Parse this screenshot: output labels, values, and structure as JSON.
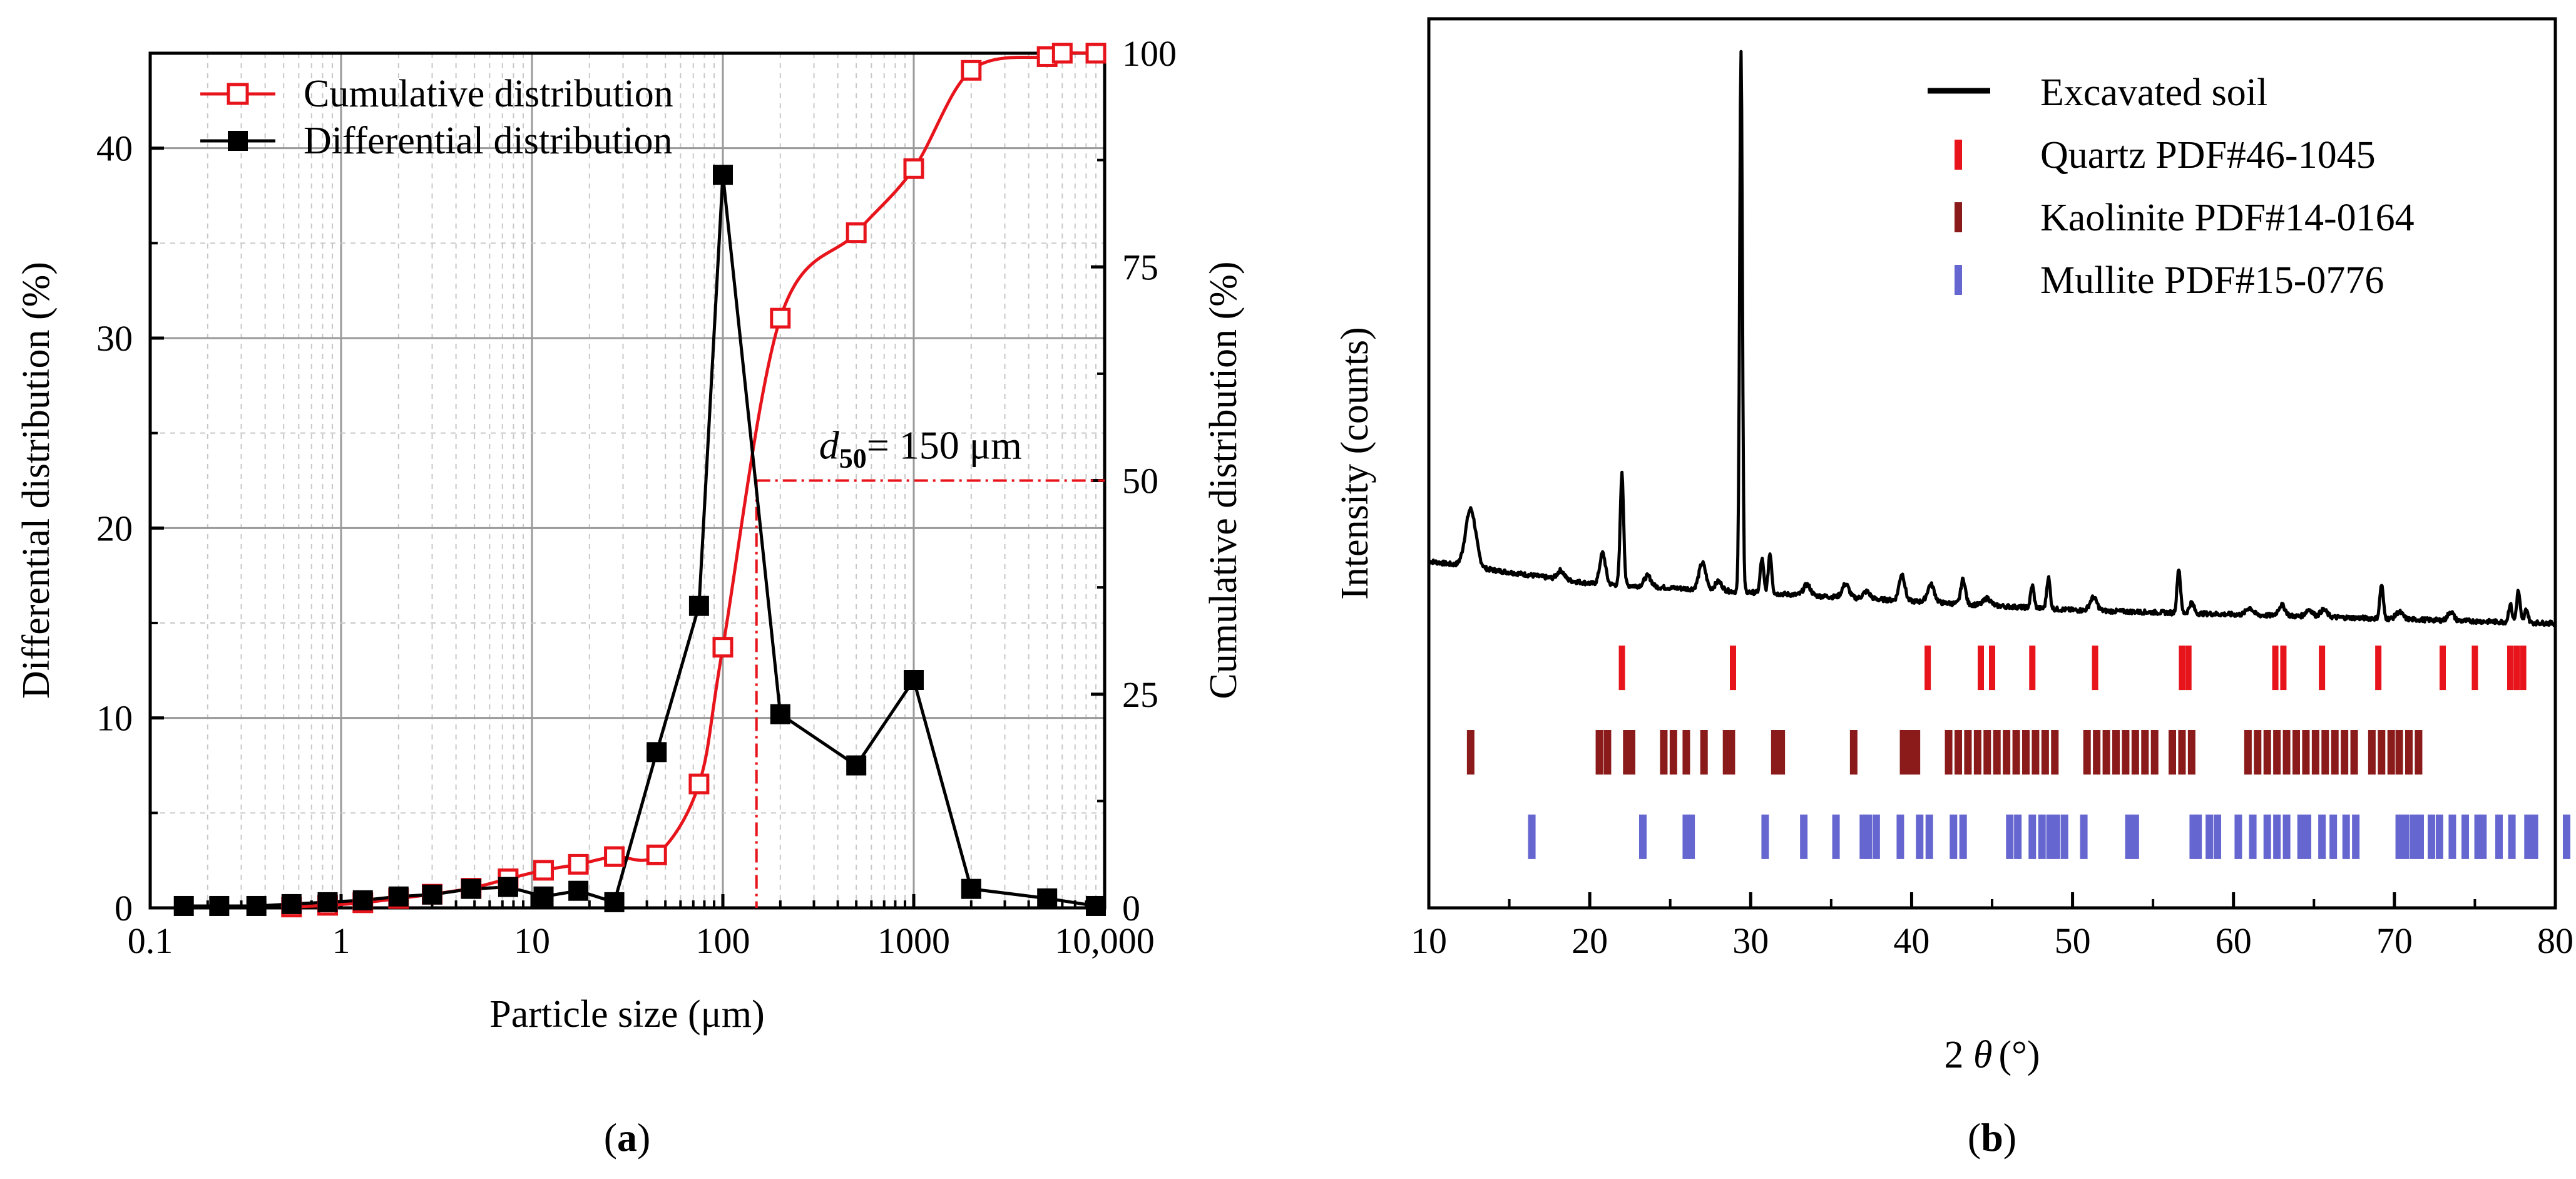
{
  "chart_data": [
    {
      "id": "a",
      "type": "line",
      "panel_label": "a",
      "xlabel": "Particle size (μm)",
      "ylabel_left": "Differential distribution (%)",
      "ylabel_right": "Cumulative distribution (%)",
      "xscale": "log",
      "xlim": [
        0.1,
        10000
      ],
      "ylim_left": [
        0,
        45
      ],
      "ylim_right": [
        0,
        100
      ],
      "grid": true,
      "legend_position": "top-left",
      "xticks": [
        {
          "v": 0.1,
          "label": "0.1"
        },
        {
          "v": 1,
          "label": "1"
        },
        {
          "v": 10,
          "label": "10"
        },
        {
          "v": 100,
          "label": "100"
        },
        {
          "v": 1000,
          "label": "1000"
        },
        {
          "v": 10000,
          "label": "10,000"
        }
      ],
      "yticks_left": [
        0,
        10,
        20,
        30,
        40
      ],
      "yticks_right": [
        0,
        25,
        50,
        75,
        100
      ],
      "series": [
        {
          "name": "Cumulative distribution",
          "axis": "right",
          "color": "#e8141c",
          "marker": "open-square",
          "x": [
            0.55,
            0.85,
            1.3,
            2.0,
            3.0,
            4.8,
            7.5,
            11.5,
            17.5,
            27,
            45,
            75,
            100,
            200,
            500,
            1000,
            2000,
            5000,
            6000,
            9000
          ],
          "y": [
            0.1,
            0.3,
            0.6,
            1.1,
            1.6,
            2.3,
            3.4,
            4.4,
            5.1,
            6.0,
            6.2,
            14.5,
            30.5,
            69.0,
            79.0,
            86.5,
            98.0,
            99.6,
            100.0,
            100.0
          ]
        },
        {
          "name": "Differential distribution",
          "axis": "left",
          "color": "#000000",
          "marker": "filled-square",
          "x": [
            0.15,
            0.23,
            0.36,
            0.55,
            0.85,
            1.3,
            2.0,
            3.0,
            4.8,
            7.5,
            11.5,
            17.5,
            27,
            45,
            75,
            100,
            200,
            500,
            1000,
            2000,
            5000,
            9000
          ],
          "y": [
            0.1,
            0.1,
            0.1,
            0.2,
            0.3,
            0.4,
            0.6,
            0.7,
            1.0,
            1.1,
            0.6,
            0.9,
            0.3,
            8.2,
            15.9,
            38.6,
            10.2,
            7.5,
            12.0,
            1.0,
            0.5,
            0.1
          ]
        }
      ],
      "annotation": {
        "d50_symbol": "d",
        "d50_subscript": "50",
        "d50_text": "= 150 μm",
        "x": 150,
        "y_right": 50,
        "color": "#e8141c"
      }
    },
    {
      "id": "b",
      "type": "line",
      "panel_label": "b",
      "xlabel_prefix": "2 ",
      "xlabel_theta": "θ",
      "xlabel_suffix": "(°)",
      "ylabel": "Intensity (counts)",
      "xlim": [
        10,
        80
      ],
      "xticks": [
        10,
        20,
        30,
        40,
        50,
        60,
        70,
        80
      ],
      "ylim": [
        0,
        100
      ],
      "legend_position": "top-right",
      "series": [
        {
          "name": "Excavated soil",
          "color": "#000000",
          "baseline": [
            [
              10,
              39
            ],
            [
              14,
              38
            ],
            [
              20,
              36.5
            ],
            [
              30,
              35.5
            ],
            [
              40,
              34.5
            ],
            [
              50,
              33.5
            ],
            [
              60,
              33
            ],
            [
              70,
              32.5
            ],
            [
              80,
              32
            ]
          ],
          "peaks": [
            {
              "x": 12.6,
              "h": 6.5,
              "w": 0.45
            },
            {
              "x": 18.2,
              "h": 1.0,
              "w": 0.3
            },
            {
              "x": 20.8,
              "h": 3.5,
              "w": 0.25
            },
            {
              "x": 22.0,
              "h": 12.5,
              "w": 0.15
            },
            {
              "x": 23.6,
              "h": 1.2,
              "w": 0.3
            },
            {
              "x": 27.0,
              "h": 3.0,
              "w": 0.3
            },
            {
              "x": 28.0,
              "h": 1.0,
              "w": 0.3
            },
            {
              "x": 29.4,
              "h": 61.0,
              "w": 0.12
            },
            {
              "x": 30.7,
              "h": 3.8,
              "w": 0.15
            },
            {
              "x": 31.2,
              "h": 4.5,
              "w": 0.15
            },
            {
              "x": 33.5,
              "h": 1.2,
              "w": 0.3
            },
            {
              "x": 35.9,
              "h": 1.5,
              "w": 0.3
            },
            {
              "x": 37.2,
              "h": 0.8,
              "w": 0.3
            },
            {
              "x": 39.4,
              "h": 3.0,
              "w": 0.25
            },
            {
              "x": 41.2,
              "h": 2.0,
              "w": 0.3
            },
            {
              "x": 43.2,
              "h": 2.8,
              "w": 0.2
            },
            {
              "x": 44.7,
              "h": 0.8,
              "w": 0.3
            },
            {
              "x": 47.5,
              "h": 2.5,
              "w": 0.15
            },
            {
              "x": 48.5,
              "h": 3.5,
              "w": 0.15
            },
            {
              "x": 51.3,
              "h": 1.5,
              "w": 0.3
            },
            {
              "x": 56.6,
              "h": 5.0,
              "w": 0.15
            },
            {
              "x": 57.4,
              "h": 1.2,
              "w": 0.2
            },
            {
              "x": 61.0,
              "h": 0.8,
              "w": 0.3
            },
            {
              "x": 63.0,
              "h": 1.2,
              "w": 0.3
            },
            {
              "x": 64.7,
              "h": 0.8,
              "w": 0.3
            },
            {
              "x": 65.6,
              "h": 0.8,
              "w": 0.3
            },
            {
              "x": 69.2,
              "h": 3.8,
              "w": 0.15
            },
            {
              "x": 70.3,
              "h": 0.8,
              "w": 0.3
            },
            {
              "x": 73.5,
              "h": 1.0,
              "w": 0.25
            },
            {
              "x": 77.2,
              "h": 2.0,
              "w": 0.15
            },
            {
              "x": 77.7,
              "h": 3.5,
              "w": 0.15
            },
            {
              "x": 78.2,
              "h": 1.5,
              "w": 0.15
            }
          ]
        },
        {
          "name": "Quartz PDF#46-1045",
          "color": "#e8141c",
          "lines": [
            22.0,
            28.9,
            41.0,
            44.3,
            45.0,
            47.5,
            51.4,
            56.8,
            57.2,
            62.6,
            63.1,
            65.5,
            69.0,
            73.0,
            75.0,
            77.2,
            77.6,
            78.0
          ]
        },
        {
          "name": "Kaolinite PDF#14-0164",
          "color": "#8b1a1a",
          "lines": [
            12.6,
            20.6,
            21.1,
            22.3,
            22.6,
            24.6,
            25.2,
            26.0,
            27.1,
            28.5,
            28.8,
            31.5,
            31.9,
            36.4,
            39.5,
            39.9,
            40.3,
            42.3,
            42.9,
            43.5,
            44.1,
            44.7,
            45.3,
            45.9,
            46.5,
            47.1,
            47.7,
            48.3,
            48.9,
            50.9,
            51.5,
            52.1,
            52.7,
            53.3,
            53.9,
            54.5,
            55.1,
            56.2,
            56.8,
            57.4,
            60.9,
            61.5,
            62.1,
            62.7,
            63.3,
            63.9,
            64.5,
            65.1,
            65.7,
            66.3,
            66.9,
            67.5,
            68.6,
            69.2,
            69.8,
            70.3,
            70.9,
            71.5
          ]
        },
        {
          "name": "Mullite PDF#15-0776",
          "color": "#6666d0",
          "lines": [
            16.4,
            23.3,
            26.0,
            26.3,
            30.9,
            33.3,
            35.3,
            37.0,
            37.3,
            37.8,
            39.3,
            40.5,
            41.1,
            42.6,
            43.2,
            46.1,
            46.6,
            47.5,
            48.1,
            48.6,
            49.0,
            49.5,
            50.7,
            53.5,
            53.9,
            57.5,
            57.8,
            58.5,
            59.0,
            60.3,
            61.2,
            62.1,
            62.7,
            63.3,
            64.2,
            64.6,
            65.5,
            66.2,
            67.0,
            67.6,
            70.3,
            70.7,
            71.2,
            71.6,
            72.3,
            72.8,
            73.6,
            74.4,
            75.2,
            75.5,
            76.5,
            77.3,
            78.3,
            78.7,
            80.7
          ]
        }
      ]
    }
  ]
}
